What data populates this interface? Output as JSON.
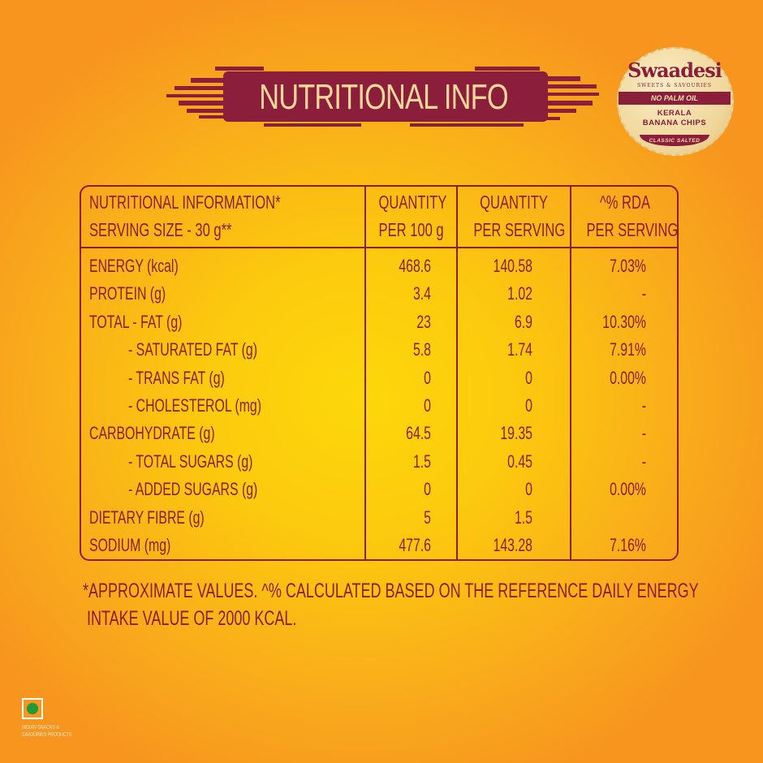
{
  "title": "NUTRITIONAL INFO",
  "badge": {
    "brand": "Swaadesi",
    "tagline": "SWEETS & SAVOURIES",
    "strip": "NO PALM OIL",
    "product_line1": "KERALA",
    "product_line2": "BANANA CHIPS",
    "variant": "CLASSIC SALTED"
  },
  "table": {
    "headers": [
      {
        "line1": "NUTRITIONAL INFORMATION*",
        "line2": "SERVING SIZE - 30 g**"
      },
      {
        "line1": "QUANTITY",
        "line2": "PER 100 g"
      },
      {
        "line1": "QUANTITY",
        "line2": "PER SERVING"
      },
      {
        "line1": "^% RDA",
        "line2": "PER SERVING"
      }
    ],
    "rows": [
      {
        "label": "ENERGY (kcal)",
        "indent": false,
        "per100": "468.6",
        "perServing": "140.58",
        "rda": "7.03%"
      },
      {
        "label": "PROTEIN (g)",
        "indent": false,
        "per100": "3.4",
        "perServing": "1.02",
        "rda": "-"
      },
      {
        "label": "TOTAL - FAT  (g)",
        "indent": false,
        "per100": "23",
        "perServing": "6.9",
        "rda": "10.30%"
      },
      {
        "label": "- SATURATED FAT (g)",
        "indent": true,
        "per100": "5.8",
        "perServing": "1.74",
        "rda": "7.91%"
      },
      {
        "label": "- TRANS FAT (g)",
        "indent": true,
        "per100": "0",
        "perServing": "0",
        "rda": "0.00%"
      },
      {
        "label": "- CHOLESTEROL (mg)",
        "indent": true,
        "per100": "0",
        "perServing": "0",
        "rda": "-"
      },
      {
        "label": "CARBOHYDRATE (g)",
        "indent": false,
        "per100": "64.5",
        "perServing": "19.35",
        "rda": "-"
      },
      {
        "label": "- TOTAL SUGARS (g)",
        "indent": true,
        "per100": "1.5",
        "perServing": "0.45",
        "rda": "-"
      },
      {
        "label": "- ADDED SUGARS (g)",
        "indent": true,
        "per100": "0",
        "perServing": "0",
        "rda": "0.00%"
      },
      {
        "label": "DIETARY FIBRE (g)",
        "indent": false,
        "per100": "5",
        "perServing": "1.5",
        "rda": ""
      },
      {
        "label": "SODIUM (mg)",
        "indent": false,
        "per100": "477.6",
        "perServing": "143.28",
        "rda": "7.16%"
      }
    ]
  },
  "footnote": {
    "line1": "*APPROXIMATE VALUES. ^% CALCULATED BASED ON THE REFERENCE DAILY ENERGY",
    "line2": " INTAKE VALUE OF 2000 KCAL."
  },
  "veg_mark": {
    "icon": "vegetarian-mark-icon",
    "line1": "INDIAN SNACKS &",
    "line2": "SAVOURIES PRODUCTS"
  },
  "colors": {
    "maroon": "#8b1e2a",
    "title_text": "#f7d89a",
    "background_center": "#fdd80a",
    "background_edge": "#f7951e",
    "veg_green": "#1e9b3a"
  }
}
